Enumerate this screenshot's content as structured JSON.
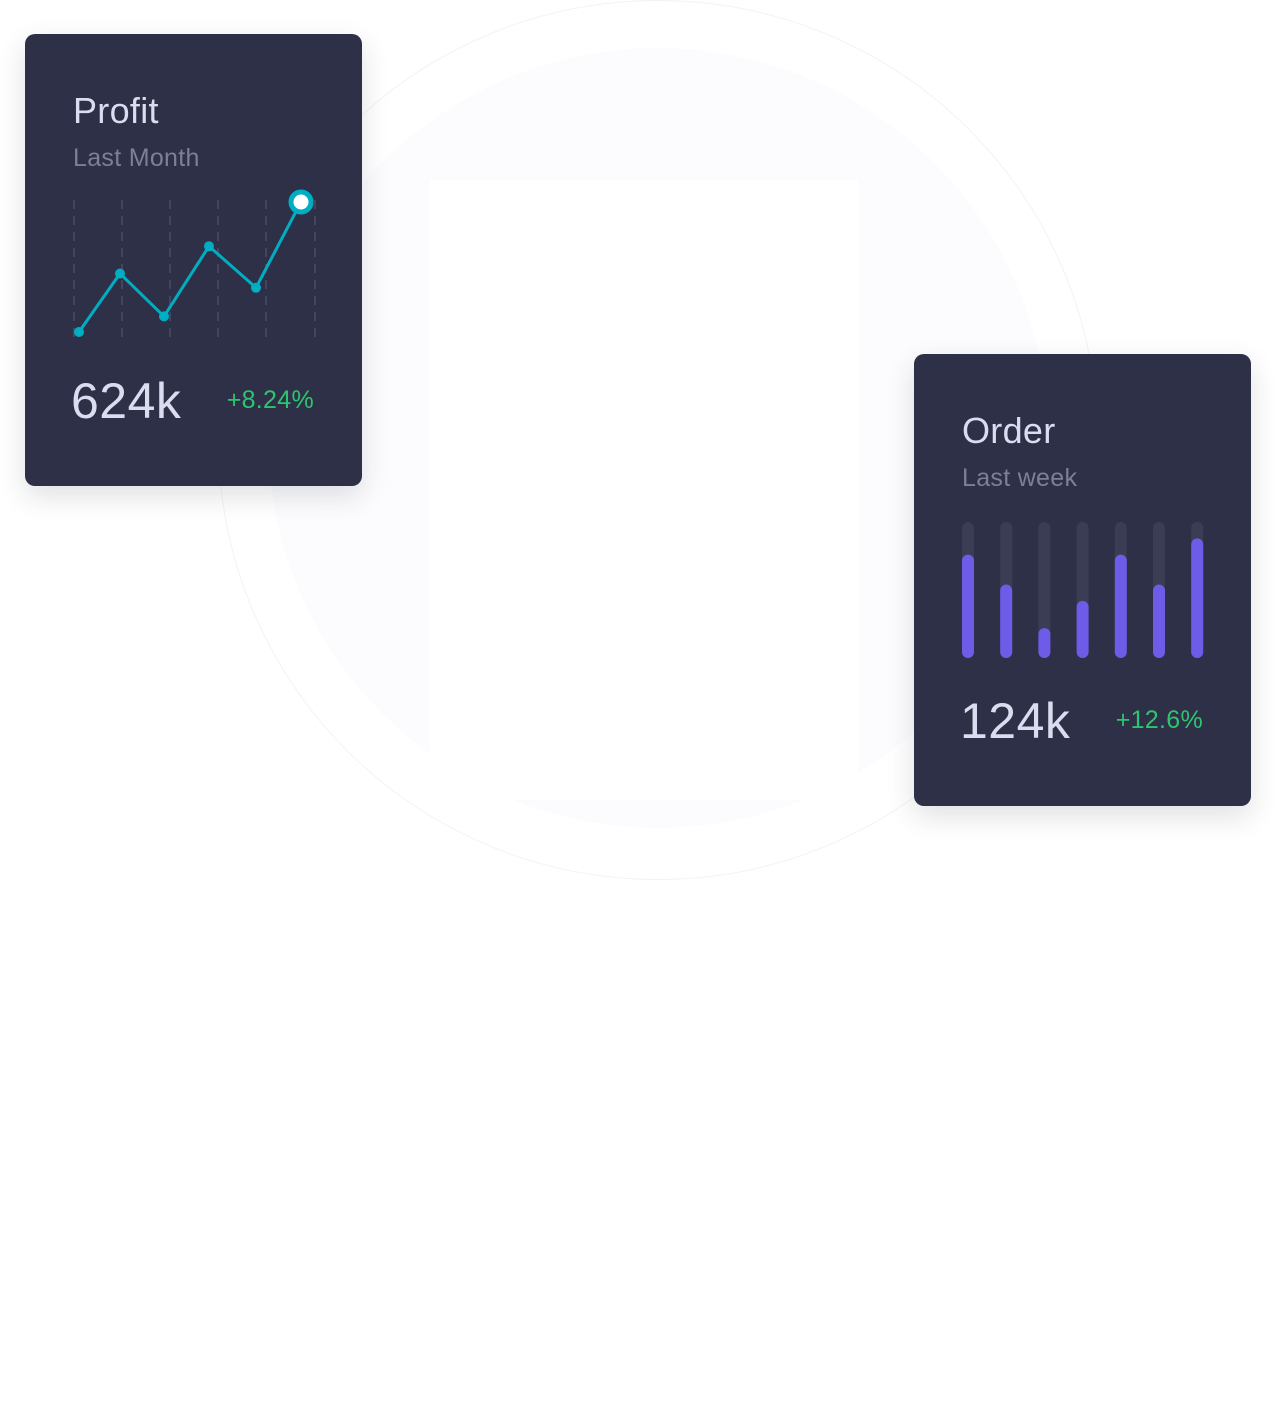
{
  "colors": {
    "card_bg": "#2e3047",
    "title_text": "#dcdcf0",
    "subtitle_text": "#7d7f98",
    "positive_change": "#2cc56f",
    "line_accent": "#00aec3",
    "bar_accent": "#6e5ce8",
    "bar_track": "#3b3d55"
  },
  "profit_card": {
    "title": "Profit",
    "subtitle": "Last Month",
    "value": "624k",
    "change": "+8.24%"
  },
  "order_card": {
    "title": "Order",
    "subtitle": "Last week",
    "value": "124k",
    "change": "+12.6%"
  },
  "chart_data": [
    {
      "type": "line",
      "x": [
        1,
        2,
        3,
        4,
        5,
        6
      ],
      "values": [
        0,
        0.45,
        0.12,
        0.66,
        0.34,
        1.0
      ],
      "ylim": [
        0,
        1
      ],
      "grid": true,
      "highlight_last_point": true
    },
    {
      "type": "bar",
      "values": [
        0.76,
        0.54,
        0.22,
        0.42,
        0.76,
        0.54,
        0.88
      ],
      "ylim": [
        0,
        1
      ],
      "track_background": true
    }
  ]
}
